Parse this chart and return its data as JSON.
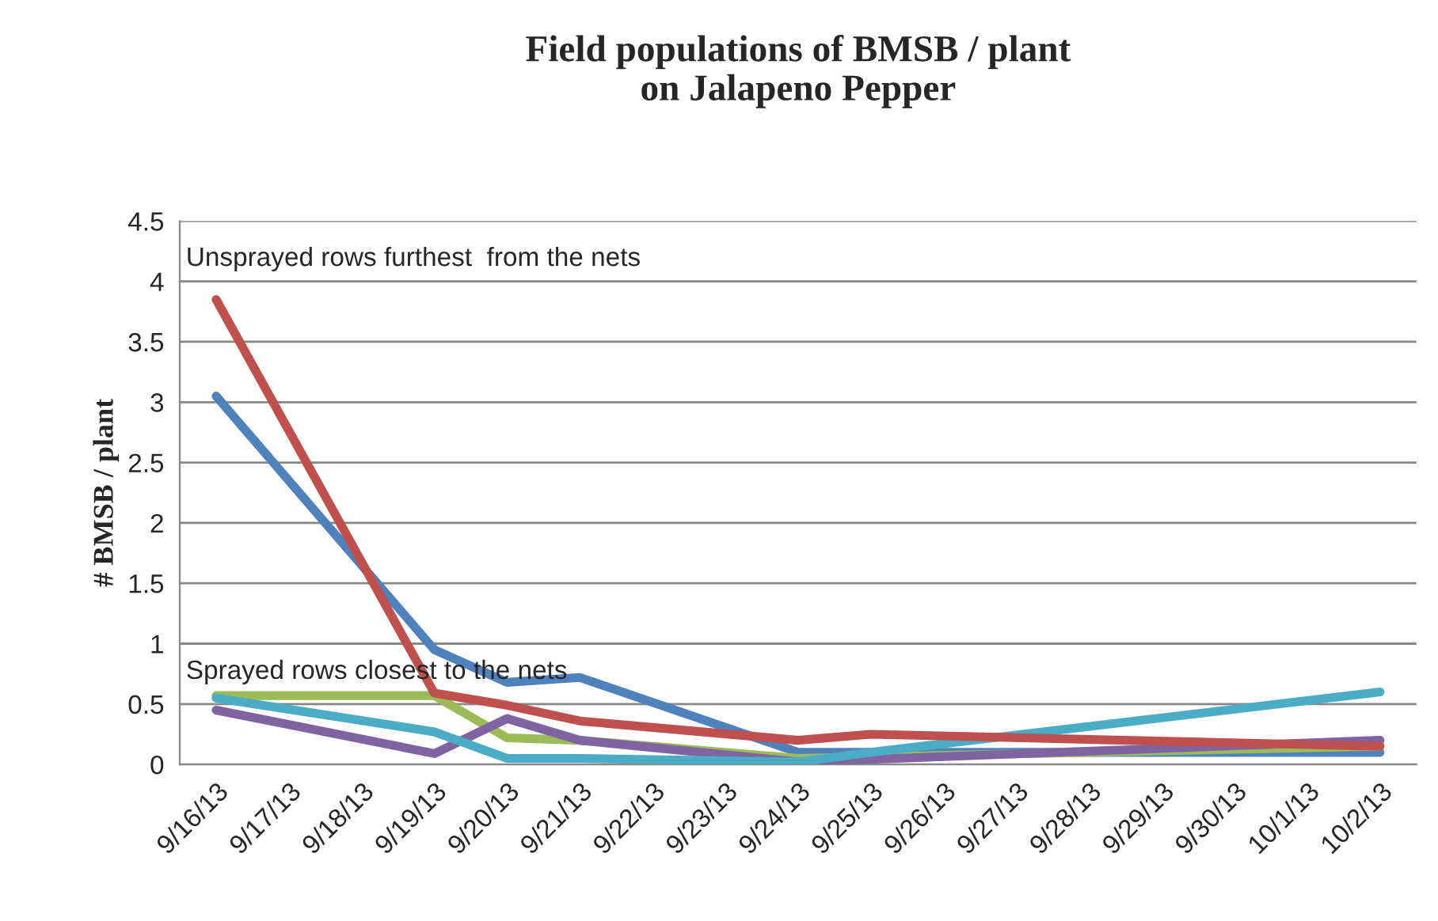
{
  "chart_data": {
    "type": "line",
    "title": "Field populations of BMSB / plant\non Jalapeno Pepper",
    "ylabel": "# BMSB / plant",
    "categories": [
      "9/16/13",
      "9/17/13",
      "9/18/13",
      "9/19/13",
      "9/20/13",
      "9/21/13",
      "9/22/13",
      "9/23/13",
      "9/24/13",
      "9/25/13",
      "9/26/13",
      "9/27/13",
      "9/28/13",
      "9/29/13",
      "9/30/13",
      "10/1/13",
      "10/2/13"
    ],
    "series": [
      {
        "color": "#4f81bd",
        "values": [
          3.05,
          null,
          null,
          0.95,
          0.68,
          0.72,
          null,
          null,
          0.1,
          null,
          null,
          null,
          null,
          null,
          null,
          null,
          0.1
        ]
      },
      {
        "color": "#9bbb59",
        "values": [
          0.57,
          null,
          null,
          0.57,
          0.22,
          0.2,
          null,
          null,
          0.05,
          null,
          null,
          null,
          null,
          null,
          null,
          null,
          0.15
        ]
      },
      {
        "color": "#8064a2",
        "values": [
          0.45,
          null,
          null,
          0.09,
          0.38,
          0.2,
          null,
          null,
          0.02,
          null,
          null,
          null,
          null,
          null,
          null,
          null,
          0.2
        ]
      },
      {
        "color": "#4bacc6",
        "values": [
          0.55,
          null,
          null,
          0.27,
          0.05,
          0.05,
          null,
          null,
          0.02,
          0.1,
          null,
          null,
          null,
          null,
          null,
          null,
          0.6
        ]
      },
      {
        "color": "#c0504d",
        "values": [
          3.85,
          null,
          null,
          0.59,
          0.49,
          0.36,
          null,
          null,
          0.2,
          0.25,
          null,
          null,
          null,
          null,
          null,
          null,
          0.15
        ]
      }
    ],
    "ylim": [
      0,
      4.5
    ],
    "yticks": [
      0,
      {
        "value": 0.5,
        "label": "0.5"
      },
      1,
      {
        "value": 1.5,
        "label": "1.5"
      },
      2,
      {
        "value": 2.5,
        "label": "2.5"
      },
      3,
      {
        "value": 3.5,
        "label": "3.5"
      },
      4,
      {
        "value": 4.5,
        "label": "4.5"
      }
    ],
    "grid": "y",
    "marker": "none",
    "line_style": "solid",
    "annotations": [
      "Unsprayed rows furthest  from the nets",
      "Sprayed rows closest to the nets"
    ]
  }
}
